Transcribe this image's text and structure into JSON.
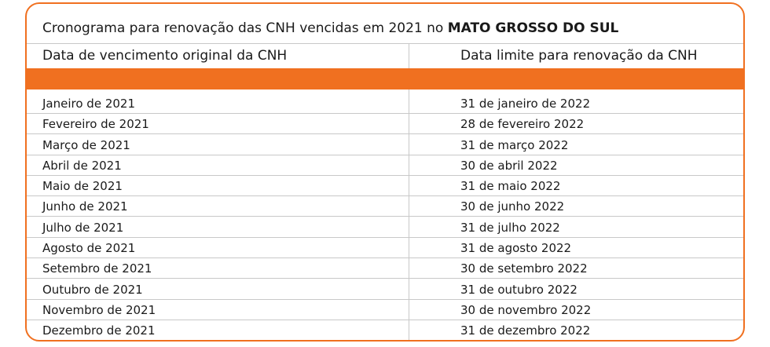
{
  "title": {
    "prefix": "Cronograma para renovação das CNH vencidas em 2021 no ",
    "bold": "MATO GROSSO DO SUL"
  },
  "table": {
    "headers": [
      "Data de vencimento original da CNH",
      "Data limite para renovação da CNH"
    ],
    "rows": [
      [
        "Janeiro de 2021",
        "31 de janeiro de 2022"
      ],
      [
        "Fevereiro de 2021",
        "28 de fevereiro 2022"
      ],
      [
        "Março de 2021",
        "31 de março 2022"
      ],
      [
        "Abril de 2021",
        "30 de abril 2022"
      ],
      [
        "Maio de 2021",
        "31 de maio 2022"
      ],
      [
        "Junho de 2021",
        "30 de junho 2022"
      ],
      [
        "Julho de 2021",
        "31 de julho 2022"
      ],
      [
        "Agosto de 2021",
        "31 de agosto 2022"
      ],
      [
        "Setembro de 2021",
        "30 de setembro 2022"
      ],
      [
        "Outubro de 2021",
        "31 de outubro 2022"
      ],
      [
        "Novembro de 2021",
        "30 de novembro 2022"
      ],
      [
        "Dezembro de 2021",
        "31 de dezembro 2022"
      ]
    ]
  },
  "colors": {
    "accent": "#f07020",
    "grid": "#c8c8c8"
  }
}
